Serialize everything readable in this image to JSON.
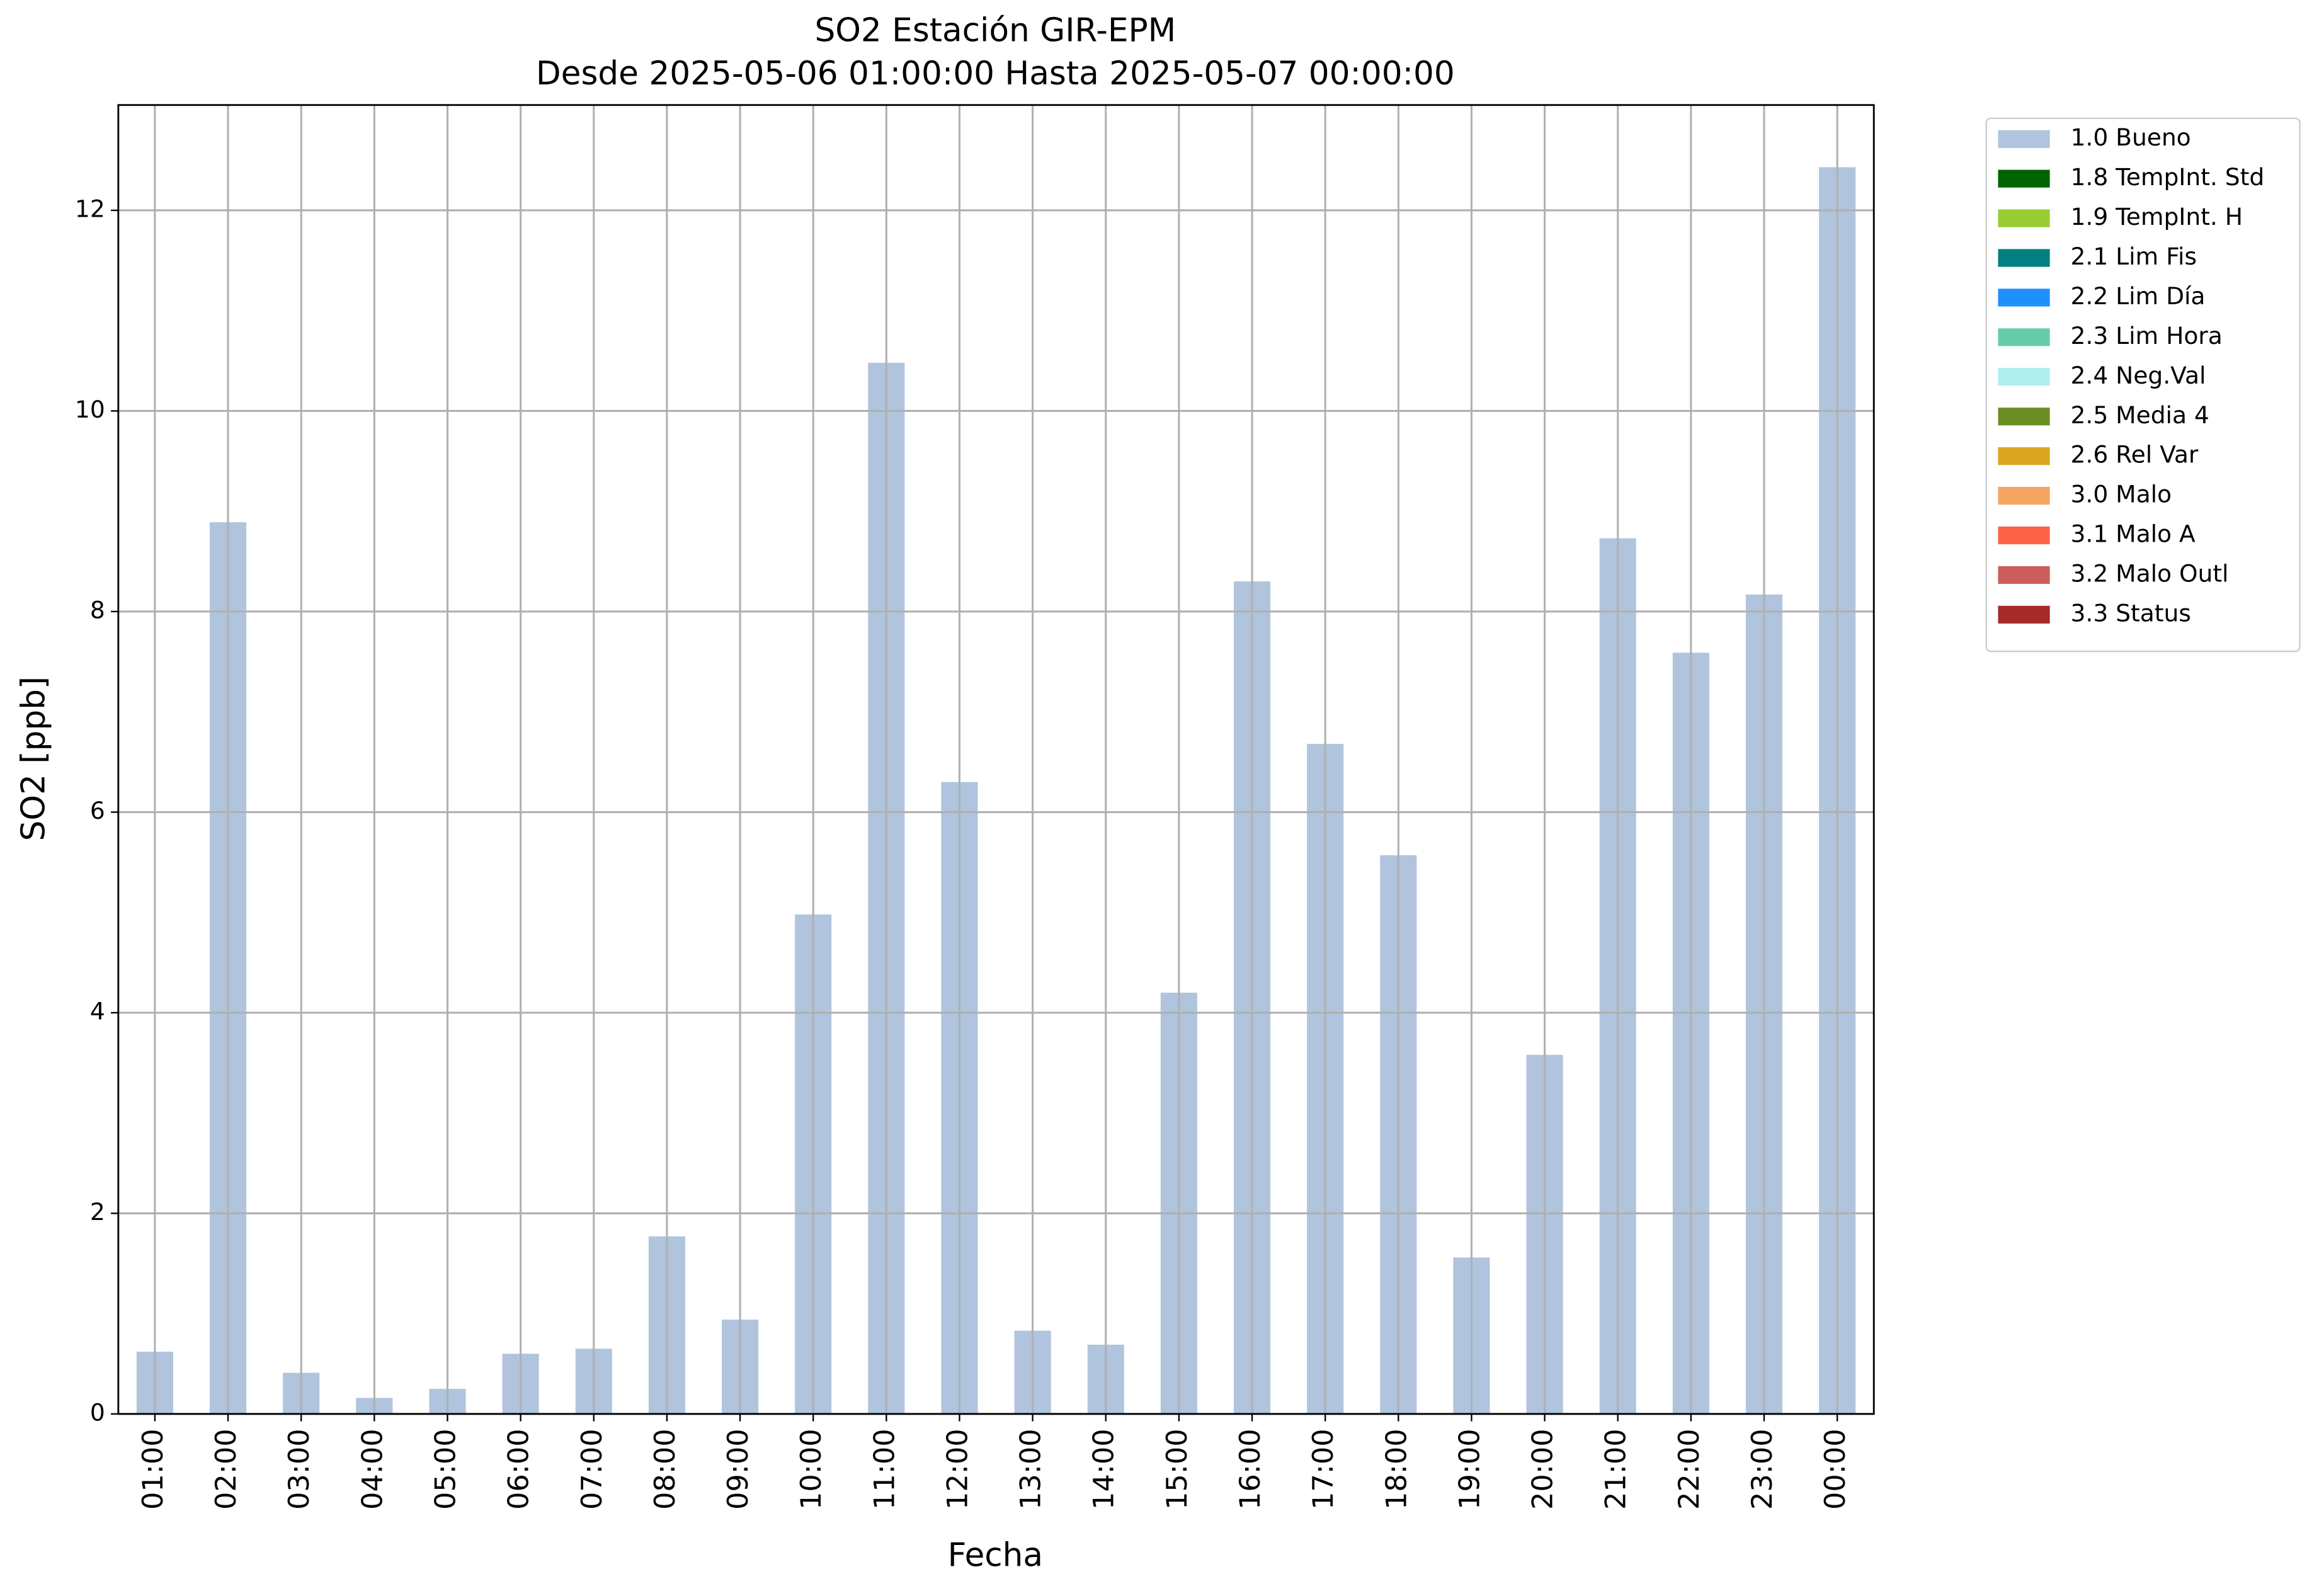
{
  "chart_data": {
    "type": "bar",
    "title": "SO2 Estación GIR-EPM",
    "subtitle": "Desde 2025-05-06 01:00:00 Hasta 2025-05-07 00:00:00",
    "x_label": "Fecha",
    "y_label": "SO2 [ppb]",
    "categories": [
      "01:00",
      "02:00",
      "03:00",
      "04:00",
      "05:00",
      "06:00",
      "07:00",
      "08:00",
      "09:00",
      "10:00",
      "11:00",
      "12:00",
      "13:00",
      "14:00",
      "15:00",
      "16:00",
      "17:00",
      "18:00",
      "19:00",
      "20:00",
      "21:00",
      "22:00",
      "23:00",
      "00:00"
    ],
    "series": [
      {
        "name": "1.0 Bueno",
        "color": "#b0c4de",
        "values": [
          0.62,
          8.89,
          0.41,
          0.16,
          0.25,
          0.6,
          0.65,
          1.77,
          0.94,
          4.98,
          10.48,
          6.3,
          0.83,
          0.69,
          4.2,
          8.3,
          6.68,
          5.57,
          1.56,
          3.58,
          8.73,
          7.59,
          8.17,
          12.43
        ]
      },
      {
        "name": "1.8 TempInt. Std",
        "color": "#006400"
      },
      {
        "name": "1.9 TempInt. H",
        "color": "#9acd32"
      },
      {
        "name": "2.1 Lim Fis",
        "color": "#008080"
      },
      {
        "name": "2.2 Lim Día",
        "color": "#1e90ff"
      },
      {
        "name": "2.3 Lim Hora",
        "color": "#66cdaa"
      },
      {
        "name": "2.4 Neg.Val",
        "color": "#afeeee"
      },
      {
        "name": "2.5 Media 4",
        "color": "#6b8e23"
      },
      {
        "name": "2.6 Rel Var",
        "color": "#daa520"
      },
      {
        "name": "3.0 Malo",
        "color": "#f4a460"
      },
      {
        "name": "3.1 Malo A",
        "color": "#ff6347"
      },
      {
        "name": "3.2 Malo Outl",
        "color": "#cd5c5c"
      },
      {
        "name": "3.3 Status",
        "color": "#a52a2a"
      }
    ],
    "ylim": [
      0,
      13.05
    ],
    "yticks": [
      0,
      2,
      4,
      6,
      8,
      10,
      12
    ],
    "grid": true,
    "legend": "outside upper right"
  }
}
